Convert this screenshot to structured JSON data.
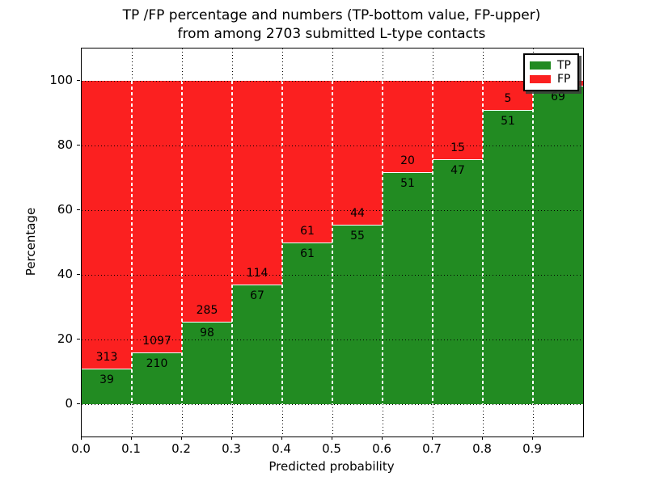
{
  "title": {
    "line1": "TP /FP percentage and numbers (TP-bottom value, FP-upper)",
    "line2": "from among 2703 submitted L-type contacts"
  },
  "axes": {
    "xlabel": "Predicted probability",
    "ylabel": "Percentage",
    "x_tick_labels": [
      "0.0",
      "0.1",
      "0.2",
      "0.3",
      "0.4",
      "0.5",
      "0.6",
      "0.7",
      "0.8",
      "0.9"
    ],
    "y_tick_labels": [
      "0",
      "20",
      "40",
      "60",
      "80",
      "100"
    ]
  },
  "legend": {
    "items": [
      {
        "label": "TP",
        "color": "#228B22"
      },
      {
        "label": "FP",
        "color": "#FB2020"
      }
    ],
    "position": "upper right"
  },
  "colors": {
    "tp": "#228B22",
    "fp": "#FB2020",
    "text": "#000000",
    "background": "#ffffff"
  },
  "chart_data": {
    "type": "bar",
    "stacked": true,
    "normalized": "each bar sums to 100%",
    "title": "TP /FP percentage and numbers (TP-bottom value, FP-upper) from among 2703 submitted L-type contacts",
    "xlabel": "Predicted probability",
    "ylabel": "Percentage",
    "xlim": [
      0.0,
      1.0
    ],
    "ylim": [
      -10,
      110
    ],
    "grid": true,
    "bin_edges": [
      0.0,
      0.1,
      0.2,
      0.3,
      0.4,
      0.5,
      0.6,
      0.7,
      0.8,
      0.9,
      1.0
    ],
    "tp_percent": [
      11.08,
      16.07,
      25.59,
      37.02,
      50.0,
      55.56,
      71.83,
      75.81,
      91.07,
      98.57
    ],
    "series": [
      {
        "name": "TP",
        "color": "#228B22",
        "counts": [
          39,
          210,
          98,
          67,
          61,
          55,
          51,
          47,
          51,
          69
        ]
      },
      {
        "name": "FP",
        "color": "#FB2020",
        "counts": [
          313,
          1097,
          285,
          114,
          61,
          44,
          20,
          15,
          5,
          null
        ]
      }
    ],
    "tp_labels": [
      "39",
      "210",
      "98",
      "67",
      "61",
      "55",
      "51",
      "47",
      "51",
      "69"
    ],
    "fp_labels": [
      "313",
      "1097",
      "285",
      "114",
      "61",
      "44",
      "20",
      "15",
      "5",
      ""
    ]
  }
}
